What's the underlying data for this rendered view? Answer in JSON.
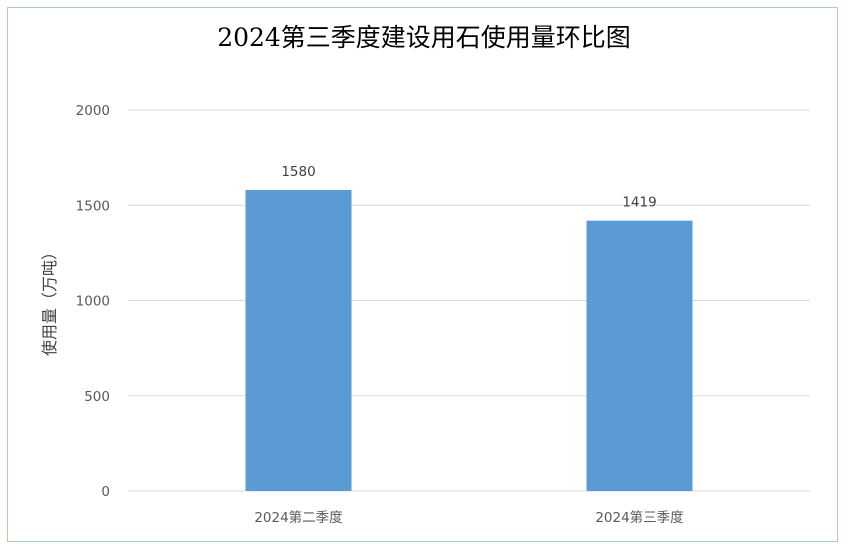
{
  "chart_data": {
    "type": "bar",
    "title": "2024第三季度建设用石使用量环比图",
    "ylabel": "使用量（万吨）",
    "xlabel": "",
    "categories": [
      "2024第二季度",
      "2024第三季度"
    ],
    "values": [
      1580,
      1419
    ],
    "data_labels": [
      "1580",
      "1419"
    ],
    "ylim": [
      0,
      2000
    ],
    "yticks": [
      0,
      500,
      1000,
      1500,
      2000
    ],
    "grid": true,
    "legend": "none",
    "bar_color": "#5b9bd5"
  }
}
